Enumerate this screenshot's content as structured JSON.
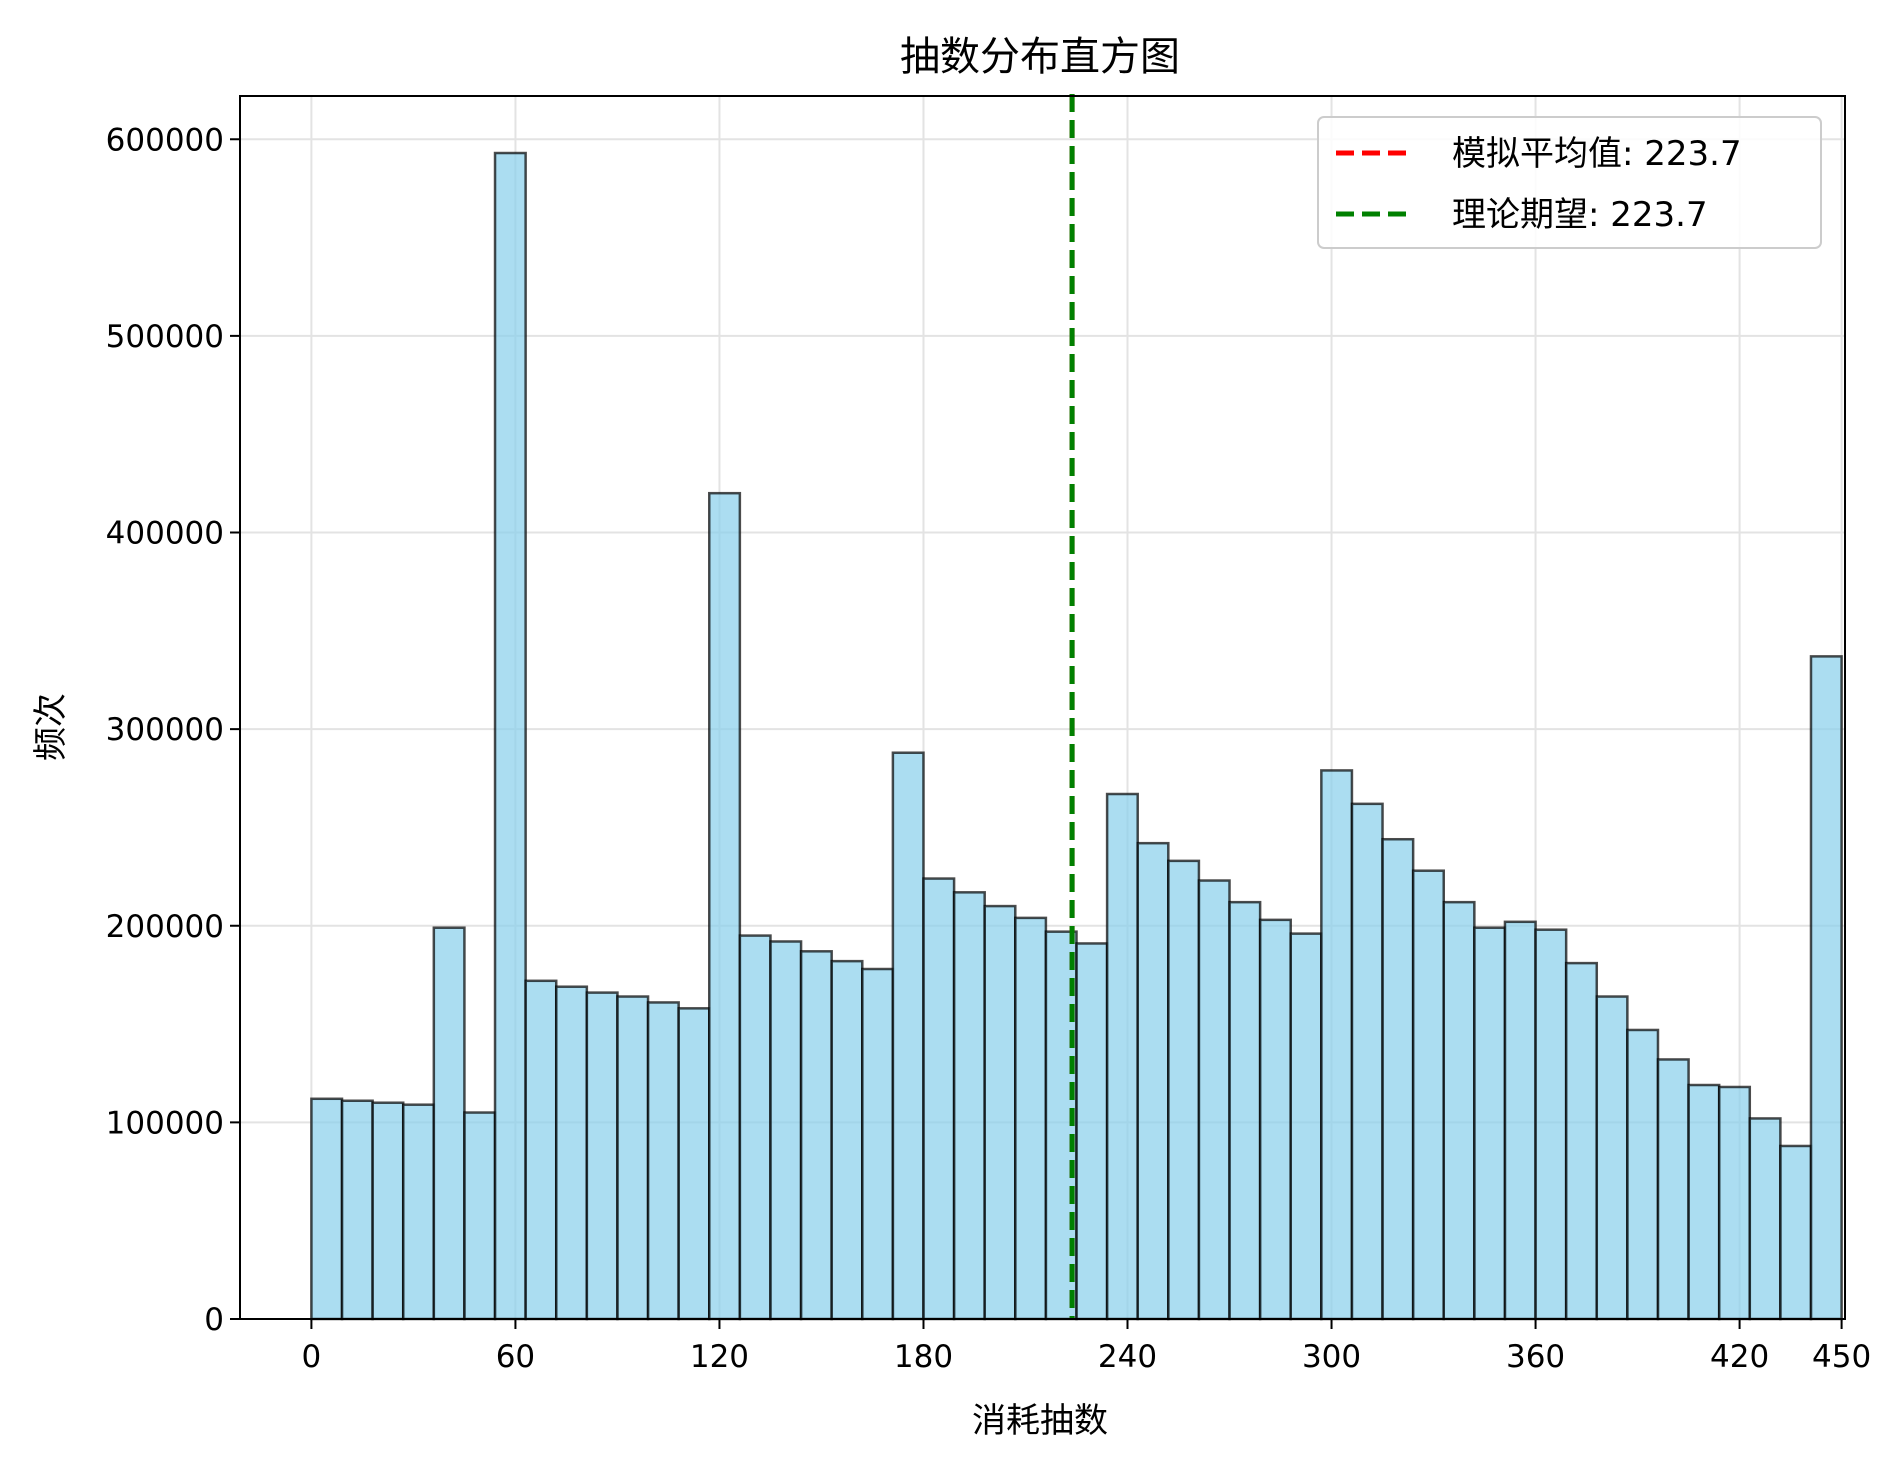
{
  "chart_data": {
    "type": "bar",
    "title": "抽数分布直方图",
    "xlabel": "消耗抽数",
    "ylabel": "频次",
    "xlim": [
      -21,
      451
    ],
    "ylim": [
      0,
      622000
    ],
    "grid": true,
    "legend_position": "top-right",
    "x_ticks": [
      0,
      60,
      120,
      180,
      240,
      300,
      360,
      420,
      450
    ],
    "y_ticks": [
      0,
      100000,
      200000,
      300000,
      400000,
      500000,
      600000
    ],
    "x_tick_labels": [
      "0",
      "60",
      "120",
      "180",
      "240",
      "300",
      "360",
      "420",
      "450"
    ],
    "y_tick_labels": [
      "0",
      "100000",
      "200000",
      "300000",
      "400000",
      "500000",
      "600000"
    ],
    "bin_width": 9,
    "bin_starts": [
      0,
      9,
      18,
      27,
      36,
      45,
      54,
      63,
      72,
      81,
      90,
      99,
      108,
      117,
      126,
      135,
      144,
      153,
      162,
      171,
      180,
      189,
      198,
      207,
      216,
      225,
      234,
      243,
      252,
      261,
      270,
      279,
      288,
      297,
      306,
      315,
      324,
      333,
      342,
      351,
      360,
      369,
      378,
      387,
      396,
      405,
      414,
      423,
      432,
      441
    ],
    "values": [
      112000,
      111000,
      110000,
      109000,
      199000,
      105000,
      593000,
      172000,
      169000,
      166000,
      164000,
      161000,
      158000,
      420000,
      195000,
      192000,
      187000,
      182000,
      178000,
      288000,
      224000,
      217000,
      210000,
      204000,
      197000,
      191000,
      267000,
      242000,
      233000,
      223000,
      212000,
      203000,
      196000,
      279000,
      262000,
      244000,
      228000,
      212000,
      199000,
      202000,
      198000,
      181000,
      164000,
      147000,
      132000,
      119000,
      118000,
      102000,
      88000,
      337000
    ],
    "bar_color": "#87CEEB",
    "bar_edge_color": "#000000",
    "vlines": [
      {
        "name": "模拟平均值",
        "value": 223.7,
        "color": "#ff0000",
        "style": "dashed",
        "label": "模拟平均值: 223.7"
      },
      {
        "name": "理论期望",
        "value": 223.7,
        "color": "#008000",
        "style": "dashed",
        "label": "理论期望: 223.7"
      }
    ]
  }
}
